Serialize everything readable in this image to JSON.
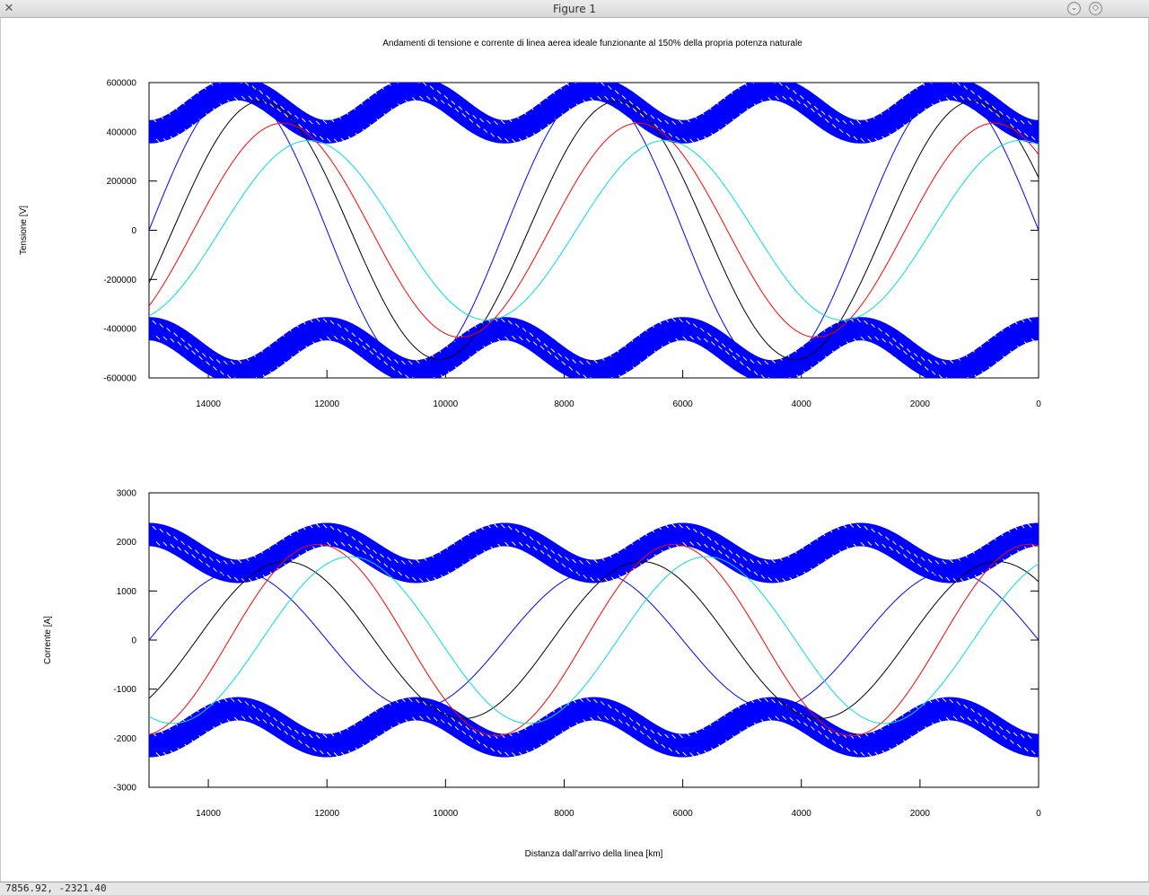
{
  "window": {
    "title": "Figure 1",
    "app_icon": "matplotlib-icon",
    "buttons": [
      "minimize-button",
      "maximize-button"
    ]
  },
  "status": {
    "coords": "7856.92, -2321.40"
  },
  "chart_data": [
    {
      "type": "line",
      "title": "Andamenti di tensione e corrente di linea aerea ideale funzionante al 150% della propria potenza naturale",
      "xlabel": "",
      "ylabel": "Tensione [V]",
      "xlim": [
        15000,
        0
      ],
      "ylim": [
        -600000,
        600000
      ],
      "xticks": [
        14000,
        12000,
        10000,
        8000,
        6000,
        4000,
        2000,
        0
      ],
      "yticks": [
        600000,
        400000,
        200000,
        0,
        -200000,
        -400000,
        -600000
      ],
      "grid": false,
      "envelope": {
        "color": "#0000ff",
        "marker": "x",
        "x_at_min": [
          12000,
          9000,
          6000,
          3000,
          0
        ],
        "min": 400000,
        "max": 575000
      },
      "series": [
        {
          "color": "#0000ff",
          "amplitude": 575000,
          "x_at_zero": 15000,
          "period_km": 6000
        },
        {
          "color": "#000000",
          "amplitude": 525000,
          "x_at_zero": 14600,
          "period_km": 6000
        },
        {
          "color": "#ff0000",
          "amplitude": 435000,
          "x_at_zero": 14250,
          "period_km": 6000
        },
        {
          "color": "#00e0e0",
          "amplitude": 365000,
          "x_at_zero": 13800,
          "period_km": 6000
        }
      ]
    },
    {
      "type": "line",
      "title": "",
      "xlabel": "Distanza dall'arrivo della linea [km]",
      "ylabel": "Corrente [A]",
      "xlim": [
        15000,
        0
      ],
      "ylim": [
        -3000,
        3000
      ],
      "xticks": [
        14000,
        12000,
        10000,
        8000,
        6000,
        4000,
        2000,
        0
      ],
      "yticks": [
        3000,
        2000,
        1000,
        0,
        -1000,
        -2000,
        -3000
      ],
      "grid": false,
      "envelope": {
        "color": "#0000ff",
        "marker": "x",
        "x_at_min": [
          13500,
          10500,
          7500,
          4500,
          1500
        ],
        "min": 1400,
        "max": 2150
      },
      "series": [
        {
          "color": "#0000ff",
          "amplitude": 1400,
          "x_at_zero": 15000,
          "period_km": 6000
        },
        {
          "color": "#000000",
          "amplitude": 1600,
          "x_at_zero": 14200,
          "period_km": 6000
        },
        {
          "color": "#ff0000",
          "amplitude": 1950,
          "x_at_zero": 13650,
          "period_km": 6000
        },
        {
          "color": "#00e0e0",
          "amplitude": 1700,
          "x_at_zero": 13100,
          "period_km": 6000
        }
      ]
    }
  ]
}
